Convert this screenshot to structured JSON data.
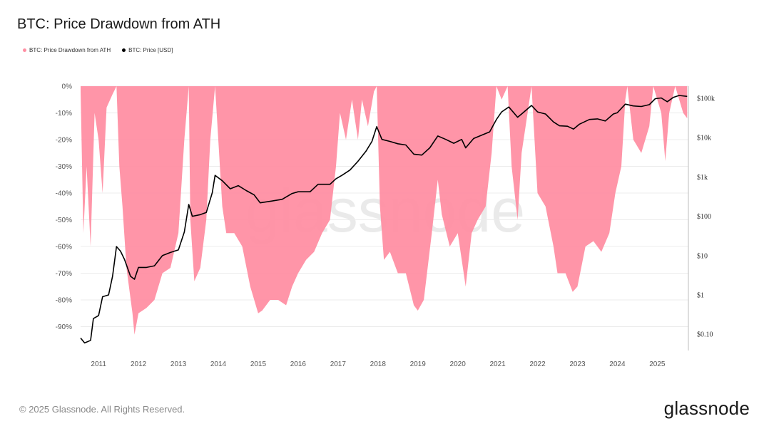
{
  "title": "BTC: Price Drawdown from ATH",
  "legend": [
    {
      "label": "BTC: Price Drawdown from ATH",
      "color": "#ff8fa3"
    },
    {
      "label": "BTC: Price [USD]",
      "color": "#000000"
    }
  ],
  "watermark": "glassnode",
  "footer": "© 2025 Glassnode. All Rights Reserved.",
  "brand": "glassnode",
  "chart_data": {
    "type": "area",
    "title": "BTC: Price Drawdown from ATH",
    "x_ticks": [
      "2011",
      "2012",
      "2013",
      "2014",
      "2015",
      "2016",
      "2017",
      "2018",
      "2019",
      "2020",
      "2021",
      "2022",
      "2023",
      "2024",
      "2025"
    ],
    "y_left": {
      "ticks": [
        "0%",
        "-10%",
        "-20%",
        "-30%",
        "-40%",
        "-50%",
        "-60%",
        "-70%",
        "-80%",
        "-90%"
      ],
      "range": [
        -0.98,
        0
      ]
    },
    "y_right": {
      "ticks": [
        "$100k",
        "$10k",
        "$1k",
        "$100",
        "$10",
        "$1",
        "$0.10"
      ],
      "scale": "log"
    },
    "grid": "horizontal",
    "series": [
      {
        "name": "BTC: Price Drawdown from ATH",
        "color": "#ff8fa3",
        "axis": "left",
        "points": [
          [
            2010.55,
            -0.02
          ],
          [
            2010.62,
            -0.55
          ],
          [
            2010.7,
            -0.3
          ],
          [
            2010.8,
            -0.6
          ],
          [
            2010.9,
            -0.1
          ],
          [
            2011.0,
            -0.2
          ],
          [
            2011.1,
            -0.4
          ],
          [
            2011.2,
            -0.08
          ],
          [
            2011.35,
            -0.03
          ],
          [
            2011.45,
            0.0
          ],
          [
            2011.52,
            -0.3
          ],
          [
            2011.6,
            -0.45
          ],
          [
            2011.7,
            -0.68
          ],
          [
            2011.85,
            -0.85
          ],
          [
            2011.9,
            -0.93
          ],
          [
            2012.0,
            -0.85
          ],
          [
            2012.2,
            -0.83
          ],
          [
            2012.4,
            -0.8
          ],
          [
            2012.6,
            -0.7
          ],
          [
            2012.8,
            -0.68
          ],
          [
            2013.0,
            -0.55
          ],
          [
            2013.15,
            -0.2
          ],
          [
            2013.26,
            0.0
          ],
          [
            2013.3,
            -0.5
          ],
          [
            2013.4,
            -0.73
          ],
          [
            2013.55,
            -0.68
          ],
          [
            2013.7,
            -0.5
          ],
          [
            2013.8,
            -0.2
          ],
          [
            2013.92,
            0.0
          ],
          [
            2014.0,
            -0.2
          ],
          [
            2014.1,
            -0.45
          ],
          [
            2014.2,
            -0.55
          ],
          [
            2014.4,
            -0.55
          ],
          [
            2014.6,
            -0.6
          ],
          [
            2014.8,
            -0.75
          ],
          [
            2015.0,
            -0.85
          ],
          [
            2015.1,
            -0.84
          ],
          [
            2015.3,
            -0.8
          ],
          [
            2015.5,
            -0.8
          ],
          [
            2015.7,
            -0.82
          ],
          [
            2015.85,
            -0.75
          ],
          [
            2016.0,
            -0.7
          ],
          [
            2016.2,
            -0.65
          ],
          [
            2016.4,
            -0.62
          ],
          [
            2016.6,
            -0.55
          ],
          [
            2016.8,
            -0.5
          ],
          [
            2016.95,
            -0.3
          ],
          [
            2017.05,
            -0.1
          ],
          [
            2017.2,
            -0.2
          ],
          [
            2017.35,
            -0.05
          ],
          [
            2017.5,
            -0.2
          ],
          [
            2017.6,
            -0.05
          ],
          [
            2017.75,
            -0.15
          ],
          [
            2017.9,
            -0.02
          ],
          [
            2017.97,
            0.0
          ],
          [
            2018.05,
            -0.45
          ],
          [
            2018.15,
            -0.65
          ],
          [
            2018.3,
            -0.62
          ],
          [
            2018.5,
            -0.7
          ],
          [
            2018.7,
            -0.7
          ],
          [
            2018.9,
            -0.82
          ],
          [
            2019.0,
            -0.84
          ],
          [
            2019.15,
            -0.8
          ],
          [
            2019.35,
            -0.55
          ],
          [
            2019.5,
            -0.35
          ],
          [
            2019.6,
            -0.48
          ],
          [
            2019.8,
            -0.6
          ],
          [
            2020.0,
            -0.55
          ],
          [
            2020.2,
            -0.75
          ],
          [
            2020.35,
            -0.55
          ],
          [
            2020.5,
            -0.5
          ],
          [
            2020.7,
            -0.45
          ],
          [
            2020.85,
            -0.25
          ],
          [
            2020.97,
            0.0
          ],
          [
            2021.1,
            -0.05
          ],
          [
            2021.25,
            0.0
          ],
          [
            2021.35,
            -0.3
          ],
          [
            2021.5,
            -0.5
          ],
          [
            2021.6,
            -0.25
          ],
          [
            2021.75,
            -0.1
          ],
          [
            2021.85,
            0.0
          ],
          [
            2022.0,
            -0.4
          ],
          [
            2022.2,
            -0.45
          ],
          [
            2022.4,
            -0.6
          ],
          [
            2022.5,
            -0.7
          ],
          [
            2022.7,
            -0.7
          ],
          [
            2022.88,
            -0.77
          ],
          [
            2023.0,
            -0.75
          ],
          [
            2023.2,
            -0.6
          ],
          [
            2023.4,
            -0.58
          ],
          [
            2023.6,
            -0.62
          ],
          [
            2023.8,
            -0.55
          ],
          [
            2023.95,
            -0.4
          ],
          [
            2024.1,
            -0.3
          ],
          [
            2024.2,
            -0.05
          ],
          [
            2024.25,
            0.0
          ],
          [
            2024.4,
            -0.2
          ],
          [
            2024.6,
            -0.25
          ],
          [
            2024.8,
            -0.15
          ],
          [
            2024.9,
            0.0
          ],
          [
            2025.0,
            -0.05
          ],
          [
            2025.1,
            -0.1
          ],
          [
            2025.2,
            -0.28
          ],
          [
            2025.3,
            -0.1
          ],
          [
            2025.45,
            0.0
          ],
          [
            2025.55,
            -0.05
          ],
          [
            2025.65,
            -0.1
          ],
          [
            2025.75,
            -0.12
          ]
        ]
      },
      {
        "name": "BTC: Price [USD]",
        "color": "#000000",
        "axis": "right",
        "points": [
          [
            2010.55,
            0.08
          ],
          [
            2010.65,
            0.06
          ],
          [
            2010.8,
            0.07
          ],
          [
            2010.87,
            0.25
          ],
          [
            2011.0,
            0.3
          ],
          [
            2011.1,
            0.9
          ],
          [
            2011.25,
            1.0
          ],
          [
            2011.35,
            3.0
          ],
          [
            2011.45,
            17.0
          ],
          [
            2011.55,
            13.0
          ],
          [
            2011.65,
            8.0
          ],
          [
            2011.8,
            3.0
          ],
          [
            2011.9,
            2.5
          ],
          [
            2012.0,
            5.0
          ],
          [
            2012.2,
            5.0
          ],
          [
            2012.4,
            5.5
          ],
          [
            2012.6,
            10.0
          ],
          [
            2012.8,
            12.0
          ],
          [
            2013.0,
            14.0
          ],
          [
            2013.15,
            40.0
          ],
          [
            2013.26,
            200.0
          ],
          [
            2013.35,
            100.0
          ],
          [
            2013.55,
            110.0
          ],
          [
            2013.7,
            125.0
          ],
          [
            2013.85,
            400.0
          ],
          [
            2013.92,
            1100.0
          ],
          [
            2014.1,
            800.0
          ],
          [
            2014.3,
            500.0
          ],
          [
            2014.5,
            600.0
          ],
          [
            2014.7,
            450.0
          ],
          [
            2014.9,
            350.0
          ],
          [
            2015.05,
            220.0
          ],
          [
            2015.3,
            240.0
          ],
          [
            2015.6,
            270.0
          ],
          [
            2015.85,
            380.0
          ],
          [
            2016.0,
            420.0
          ],
          [
            2016.3,
            420.0
          ],
          [
            2016.5,
            650.0
          ],
          [
            2016.8,
            650.0
          ],
          [
            2016.95,
            900.0
          ],
          [
            2017.1,
            1100.0
          ],
          [
            2017.3,
            1500.0
          ],
          [
            2017.5,
            2500.0
          ],
          [
            2017.7,
            4500.0
          ],
          [
            2017.85,
            8000.0
          ],
          [
            2017.97,
            19000.0
          ],
          [
            2018.1,
            9000.0
          ],
          [
            2018.3,
            8000.0
          ],
          [
            2018.5,
            7000.0
          ],
          [
            2018.7,
            6500.0
          ],
          [
            2018.9,
            3800.0
          ],
          [
            2019.1,
            3600.0
          ],
          [
            2019.3,
            5500.0
          ],
          [
            2019.5,
            11000.0
          ],
          [
            2019.7,
            9000.0
          ],
          [
            2019.9,
            7200.0
          ],
          [
            2020.1,
            9000.0
          ],
          [
            2020.2,
            5500.0
          ],
          [
            2020.4,
            9500.0
          ],
          [
            2020.6,
            11500.0
          ],
          [
            2020.8,
            14000.0
          ],
          [
            2020.97,
            29000.0
          ],
          [
            2021.1,
            45000.0
          ],
          [
            2021.28,
            60000.0
          ],
          [
            2021.5,
            33000.0
          ],
          [
            2021.6,
            40000.0
          ],
          [
            2021.85,
            66000.0
          ],
          [
            2022.0,
            45000.0
          ],
          [
            2022.2,
            40000.0
          ],
          [
            2022.4,
            25000.0
          ],
          [
            2022.55,
            20000.0
          ],
          [
            2022.75,
            19500.0
          ],
          [
            2022.9,
            16500.0
          ],
          [
            2023.05,
            22000.0
          ],
          [
            2023.3,
            29000.0
          ],
          [
            2023.5,
            30000.0
          ],
          [
            2023.7,
            26500.0
          ],
          [
            2023.9,
            40000.0
          ],
          [
            2024.0,
            43000.0
          ],
          [
            2024.2,
            71000.0
          ],
          [
            2024.4,
            64000.0
          ],
          [
            2024.6,
            62000.0
          ],
          [
            2024.8,
            69000.0
          ],
          [
            2024.95,
            98000.0
          ],
          [
            2025.1,
            102000.0
          ],
          [
            2025.25,
            82000.0
          ],
          [
            2025.4,
            105000.0
          ],
          [
            2025.55,
            118000.0
          ],
          [
            2025.75,
            112000.0
          ]
        ]
      }
    ]
  }
}
